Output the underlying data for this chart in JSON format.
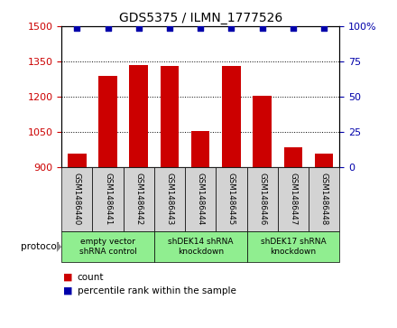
{
  "title": "GDS5375 / ILMN_1777526",
  "samples": [
    "GSM1486440",
    "GSM1486441",
    "GSM1486442",
    "GSM1486443",
    "GSM1486444",
    "GSM1486445",
    "GSM1486446",
    "GSM1486447",
    "GSM1486448"
  ],
  "counts": [
    960,
    1290,
    1335,
    1330,
    1055,
    1330,
    1205,
    985,
    958
  ],
  "percentile_ranks": [
    99,
    99,
    99,
    99,
    99,
    99,
    99,
    99,
    99
  ],
  "ylim_left": [
    900,
    1500
  ],
  "ylim_right": [
    0,
    100
  ],
  "yticks_left": [
    900,
    1050,
    1200,
    1350,
    1500
  ],
  "yticks_right": [
    0,
    25,
    50,
    75,
    100
  ],
  "bar_color": "#CC0000",
  "dot_color": "#0000AA",
  "bg_color": "#FFFFFF",
  "grid_color": "#000000",
  "protocol_groups": [
    {
      "label": "empty vector\nshRNA control",
      "start": 0,
      "end": 3,
      "color": "#90EE90"
    },
    {
      "label": "shDEK14 shRNA\nknockdown",
      "start": 3,
      "end": 6,
      "color": "#90EE90"
    },
    {
      "label": "shDEK17 shRNA\nknockdown",
      "start": 6,
      "end": 9,
      "color": "#90EE90"
    }
  ],
  "legend_count_label": "count",
  "legend_pct_label": "percentile rank within the sample",
  "tick_label_color_left": "#CC0000",
  "tick_label_color_right": "#0000AA",
  "protocol_label": "protocol",
  "bar_width": 0.6,
  "sample_box_color": "#D3D3D3",
  "right_ytick_labels": [
    "0",
    "25",
    "50",
    "75",
    "100%"
  ]
}
